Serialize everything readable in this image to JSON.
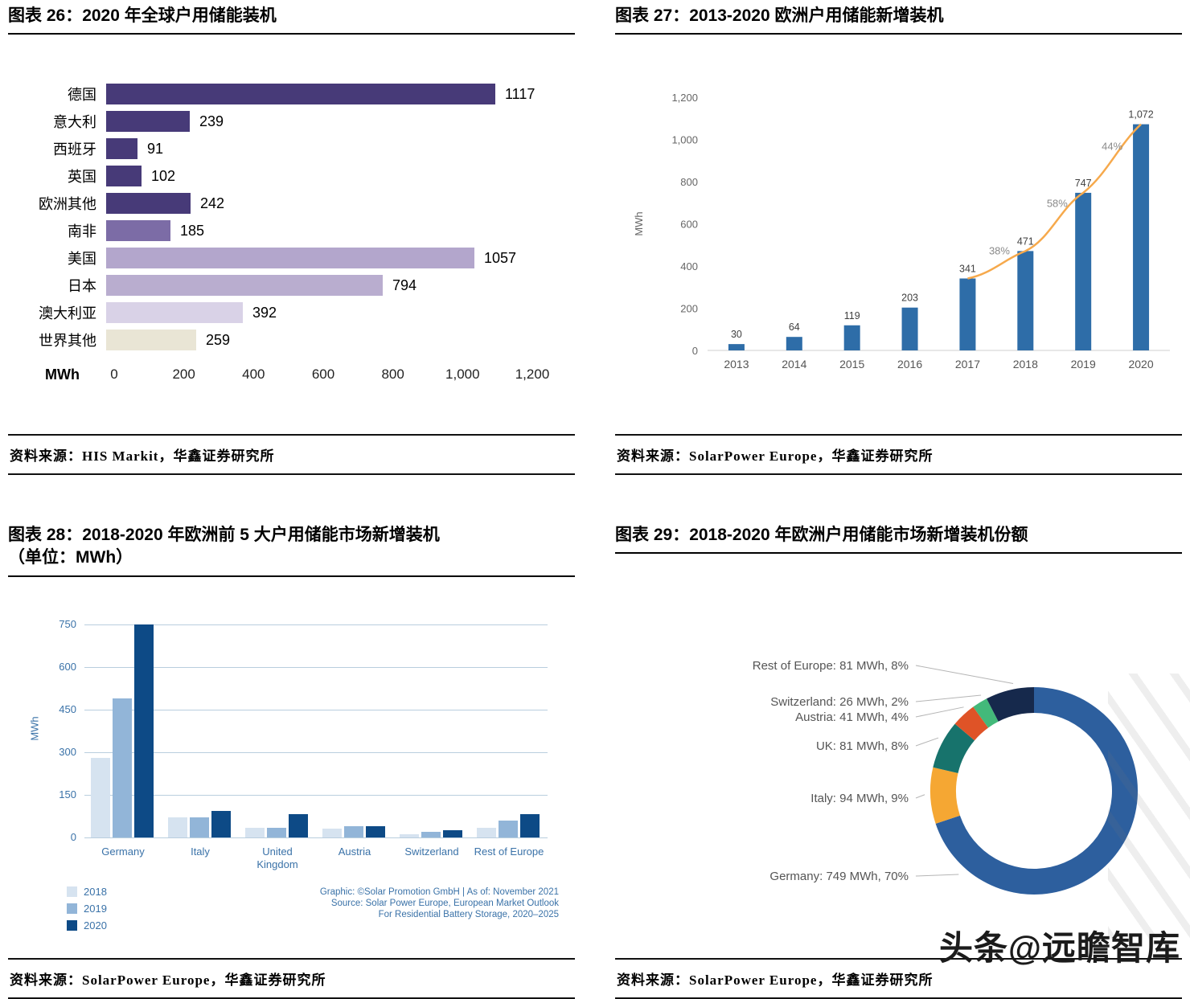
{
  "page": {
    "watermark": "头条@远瞻智库"
  },
  "figures": [
    {
      "id": "fig26",
      "title": "图表 26：2020 年全球户用储能装机",
      "source": "资料来源：HIS Markit，华鑫证券研究所"
    },
    {
      "id": "fig27",
      "title": "图表 27：2013-2020 欧洲户用储能新增装机",
      "source": "资料来源：SolarPower Europe，华鑫证券研究所"
    },
    {
      "id": "fig28",
      "title": "图表 28：2018-2020 年欧洲前 5 大户用储能市场新增装机",
      "title_line2": "（单位：MWh）",
      "source": "资料来源：SolarPower Europe，华鑫证券研究所"
    },
    {
      "id": "fig29",
      "title": "图表 29：2018-2020 年欧洲户用储能市场新增装机份额",
      "source": "资料来源：SolarPower Europe，华鑫证券研究所"
    }
  ],
  "chart_data": [
    {
      "id": "fig26",
      "type": "bar",
      "orientation": "horizontal",
      "unit": "MWh",
      "categories": [
        "德国",
        "意大利",
        "西班牙",
        "英国",
        "欧洲其他",
        "南非",
        "美国",
        "日本",
        "澳大利亚",
        "世界其他"
      ],
      "values": [
        1117,
        239,
        91,
        102,
        242,
        185,
        1057,
        794,
        392,
        259
      ],
      "colors": [
        "#473a78",
        "#473a78",
        "#473a78",
        "#473a78",
        "#473a78",
        "#7c6ca6",
        "#b3a6cc",
        "#b9adcf",
        "#d9d2e7",
        "#e9e5d5"
      ],
      "xlim": [
        0,
        1200
      ],
      "xticks": [
        "0",
        "200",
        "400",
        "600",
        "800",
        "1,000",
        "1,200"
      ]
    },
    {
      "id": "fig27",
      "type": "bar+line",
      "categories": [
        "2013",
        "2014",
        "2015",
        "2016",
        "2017",
        "2018",
        "2019",
        "2020"
      ],
      "values": [
        30,
        64,
        119,
        203,
        341,
        471,
        747,
        1072
      ],
      "value_labels": [
        "30",
        "64",
        "119",
        "203",
        "341",
        "471",
        "747",
        "1,072"
      ],
      "growth_labels": [
        "38%",
        "58%",
        "44%"
      ],
      "ylabel": "MWh",
      "ylim": [
        0,
        1200
      ],
      "yticks": [
        "0",
        "200",
        "400",
        "600",
        "800",
        "1,000",
        "1,200"
      ],
      "bar_color": "#2e6da8",
      "line_color": "#f6a94c"
    },
    {
      "id": "fig28",
      "type": "bar",
      "grouped": true,
      "categories": [
        "Germany",
        "Italy",
        "United Kingdom",
        "Austria",
        "Switzerland",
        "Rest of Europe"
      ],
      "series": [
        {
          "name": "2018",
          "color": "#d6e3f0",
          "values": [
            280,
            70,
            35,
            30,
            10,
            35
          ]
        },
        {
          "name": "2019",
          "color": "#92b5d8",
          "values": [
            490,
            70,
            35,
            40,
            20,
            60
          ]
        },
        {
          "name": "2020",
          "color": "#0d4a86",
          "values": [
            749,
            94,
            81,
            41,
            26,
            81
          ]
        }
      ],
      "ylabel": "MWh",
      "ylim": [
        0,
        750
      ],
      "yticks": [
        "0",
        "150",
        "300",
        "450",
        "600",
        "750"
      ],
      "credit_lines": [
        "Graphic: ©Solar Promotion GmbH | As of: November 2021",
        "Source: Solar Power Europe, European Market Outlook",
        "For Residential Battery Storage, 2020–2025"
      ]
    },
    {
      "id": "fig29",
      "type": "pie",
      "donut": true,
      "label_order": [
        "Rest of Europe",
        "Switzerland",
        "Austria",
        "UK",
        "Italy",
        "Germany"
      ],
      "segments": [
        {
          "name": "Germany",
          "label": "Germany: 749 MWh, 70%",
          "mwh": 749,
          "pct": 70,
          "color": "#2d5f9e"
        },
        {
          "name": "Italy",
          "label": "Italy: 94 MWh, 9%",
          "mwh": 94,
          "pct": 9,
          "color": "#f5a733"
        },
        {
          "name": "UK",
          "label": "UK: 81 MWh, 8%",
          "mwh": 81,
          "pct": 8,
          "color": "#17736c"
        },
        {
          "name": "Austria",
          "label": "Austria: 41 MWh, 4%",
          "mwh": 41,
          "pct": 4,
          "color": "#df5327"
        },
        {
          "name": "Switzerland",
          "label": "Switzerland: 26 MWh, 2%",
          "mwh": 26,
          "pct": 2,
          "color": "#43b97a"
        },
        {
          "name": "Rest of Europe",
          "label": "Rest of Europe: 81 MWh, 8%",
          "mwh": 81,
          "pct": 8,
          "color": "#16294c"
        }
      ]
    }
  ]
}
